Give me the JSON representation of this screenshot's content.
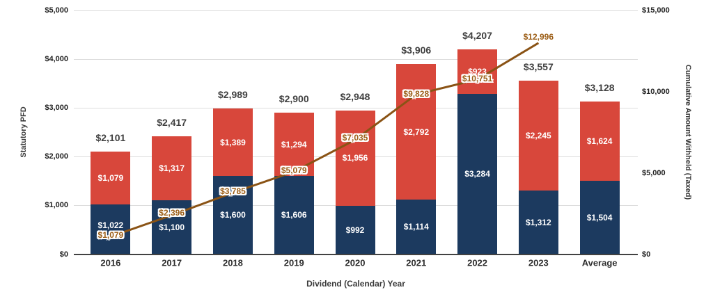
{
  "chart_data": {
    "type": "bar",
    "variant": "stacked-columns-with-cumulative-line",
    "title": "",
    "xlabel": "Dividend (Calendar) Year",
    "ylabel_left": "Statutory PFD",
    "ylabel_right": "Cumulative Amount Withheld (Taxed)",
    "categories": [
      "2016",
      "2017",
      "2018",
      "2019",
      "2020",
      "2021",
      "2022",
      "2023",
      "Average"
    ],
    "series": [
      {
        "id": "bottom",
        "color": "#1C3A5F",
        "label_color": "#FFFFFF",
        "values": [
          1022,
          1100,
          1600,
          1606,
          992,
          1114,
          3284,
          1312,
          1504
        ],
        "label_dy": [
          -6,
          0,
          0,
          0,
          0,
          0,
          0,
          0,
          0
        ]
      },
      {
        "id": "top",
        "color": "#D8473B",
        "label_color": "#FFFFFF",
        "values": [
          1079,
          1317,
          1389,
          1294,
          1956,
          2792,
          923,
          2245,
          1624
        ],
        "label_dy": [
          0,
          0,
          0,
          0,
          0,
          0,
          0,
          0,
          0
        ]
      }
    ],
    "totals": [
      2101,
      2417,
      2989,
      2900,
      2948,
      3906,
      4207,
      3557,
      3128
    ],
    "total_label_color": "#404040",
    "line": {
      "id": "cumulative",
      "color": "#8A5315",
      "label_color": "#9C5E17",
      "values": [
        1079,
        2396,
        3785,
        5079,
        7035,
        9828,
        10751,
        12996
      ],
      "label_dy": [
        -2,
        -4,
        -2,
        -2,
        -3,
        -1,
        -1,
        -9
      ]
    },
    "axis_left": {
      "min": 0,
      "max": 5000,
      "ticks": [
        {
          "v": 0,
          "label": "$0"
        },
        {
          "v": 1000,
          "label": "$1,000"
        },
        {
          "v": 2000,
          "label": "$2,000"
        },
        {
          "v": 3000,
          "label": "$3,000"
        },
        {
          "v": 4000,
          "label": "$4,000"
        },
        {
          "v": 5000,
          "label": "$5,000"
        }
      ]
    },
    "axis_right": {
      "min": 0,
      "max": 15000,
      "ticks": [
        {
          "v": 0,
          "label": "$0"
        },
        {
          "v": 5000,
          "label": "$5,000"
        },
        {
          "v": 10000,
          "label": "$10,000"
        },
        {
          "v": 15000,
          "label": "$15,000"
        }
      ]
    },
    "grid": true,
    "legend": "none"
  }
}
